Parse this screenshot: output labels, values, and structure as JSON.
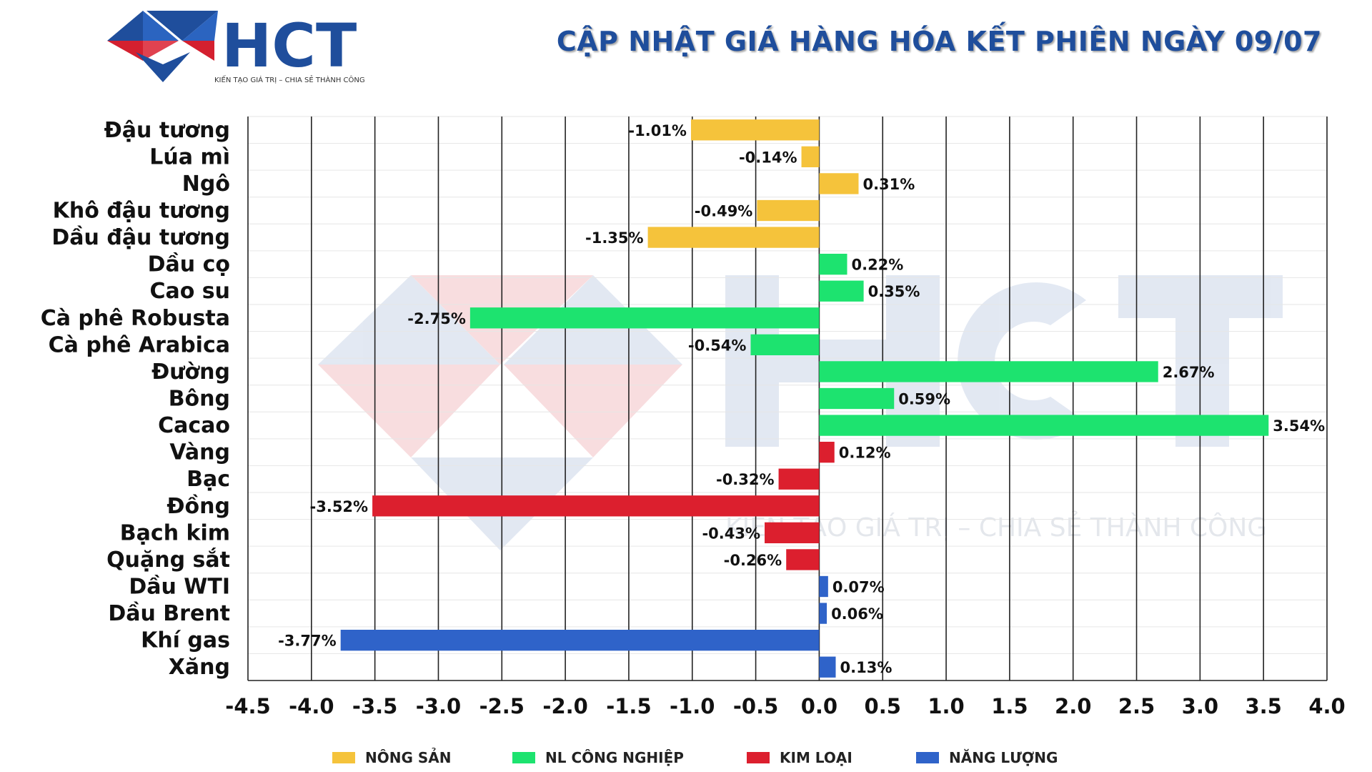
{
  "header": {
    "title": "CẬP NHẬT GIÁ HÀNG HÓA KẾT PHIÊN NGÀY 09/07",
    "logo_text": "HCT",
    "logo_tagline": "KIẾN TẠO GIÁ TRỊ – CHIA SẺ THÀNH CÔNG",
    "watermark_tagline": "KIẾN TẠO GIÁ TRỊ – CHIA SẺ THÀNH CÔNG"
  },
  "colors": {
    "title": "#1f4e9c",
    "logo_blue": "#1f4e9c",
    "logo_red": "#d4202f"
  },
  "chart_data": {
    "type": "bar",
    "orientation": "horizontal",
    "title": "CẬP NHẬT GIÁ HÀNG HÓA KẾT PHIÊN NGÀY 09/07",
    "xlabel": "",
    "ylabel": "",
    "xlim": [
      -4.5,
      4.0
    ],
    "xticks": [
      -4.5,
      -4.0,
      -3.5,
      -3.0,
      -2.5,
      -2.0,
      -1.5,
      -1.0,
      -0.5,
      0.0,
      0.5,
      1.0,
      1.5,
      2.0,
      2.5,
      3.0,
      3.5,
      4.0
    ],
    "xtick_labels": [
      "-4.5",
      "-4.0",
      "-3.5",
      "-3.0",
      "-2.5",
      "-2.0",
      "-1.5",
      "-1.0",
      "-0.5",
      "0.0",
      "0.5",
      "1.0",
      "1.5",
      "2.0",
      "2.5",
      "3.0",
      "3.5",
      "4.0"
    ],
    "grid": "vertical",
    "legend_position": "bottom",
    "groups": [
      {
        "name": "NÔNG SẢN",
        "color": "#f5c33b"
      },
      {
        "name": "NL CÔNG NGHIỆP",
        "color": "#1de36f"
      },
      {
        "name": "KIM LOẠI",
        "color": "#dc1f2e"
      },
      {
        "name": "NĂNG LƯỢNG",
        "color": "#2f63c9"
      }
    ],
    "items": [
      {
        "category": "Đậu tương",
        "value": -1.01,
        "label": "-1.01%",
        "group": 0
      },
      {
        "category": "Lúa mì",
        "value": -0.14,
        "label": "-0.14%",
        "group": 0
      },
      {
        "category": "Ngô",
        "value": 0.31,
        "label": "0.31%",
        "group": 0
      },
      {
        "category": "Khô đậu tương",
        "value": -0.49,
        "label": "-0.49%",
        "group": 0
      },
      {
        "category": "Dầu đậu tương",
        "value": -1.35,
        "label": "-1.35%",
        "group": 0
      },
      {
        "category": "Dầu cọ",
        "value": 0.22,
        "label": "0.22%",
        "group": 1
      },
      {
        "category": "Cao su",
        "value": 0.35,
        "label": "0.35%",
        "group": 1
      },
      {
        "category": "Cà phê Robusta",
        "value": -2.75,
        "label": "-2.75%",
        "group": 1
      },
      {
        "category": "Cà phê Arabica",
        "value": -0.54,
        "label": "-0.54%",
        "group": 1
      },
      {
        "category": "Đường",
        "value": 2.67,
        "label": "2.67%",
        "group": 1
      },
      {
        "category": "Bông",
        "value": 0.59,
        "label": "0.59%",
        "group": 1
      },
      {
        "category": "Cacao",
        "value": 3.54,
        "label": "3.54%",
        "group": 1
      },
      {
        "category": "Vàng",
        "value": 0.12,
        "label": "0.12%",
        "group": 2
      },
      {
        "category": "Bạc",
        "value": -0.32,
        "label": "-0.32%",
        "group": 2
      },
      {
        "category": "Đồng",
        "value": -3.52,
        "label": "-3.52%",
        "group": 2
      },
      {
        "category": "Bạch kim",
        "value": -0.43,
        "label": "-0.43%",
        "group": 2
      },
      {
        "category": "Quặng sắt",
        "value": -0.26,
        "label": "-0.26%",
        "group": 2
      },
      {
        "category": "Dầu WTI",
        "value": 0.07,
        "label": "0.07%",
        "group": 3
      },
      {
        "category": "Dầu Brent",
        "value": 0.06,
        "label": "0.06%",
        "group": 3
      },
      {
        "category": "Khí gas",
        "value": -3.77,
        "label": "-3.77%",
        "group": 3
      },
      {
        "category": "Xăng",
        "value": 0.13,
        "label": "0.13%",
        "group": 3
      }
    ]
  }
}
